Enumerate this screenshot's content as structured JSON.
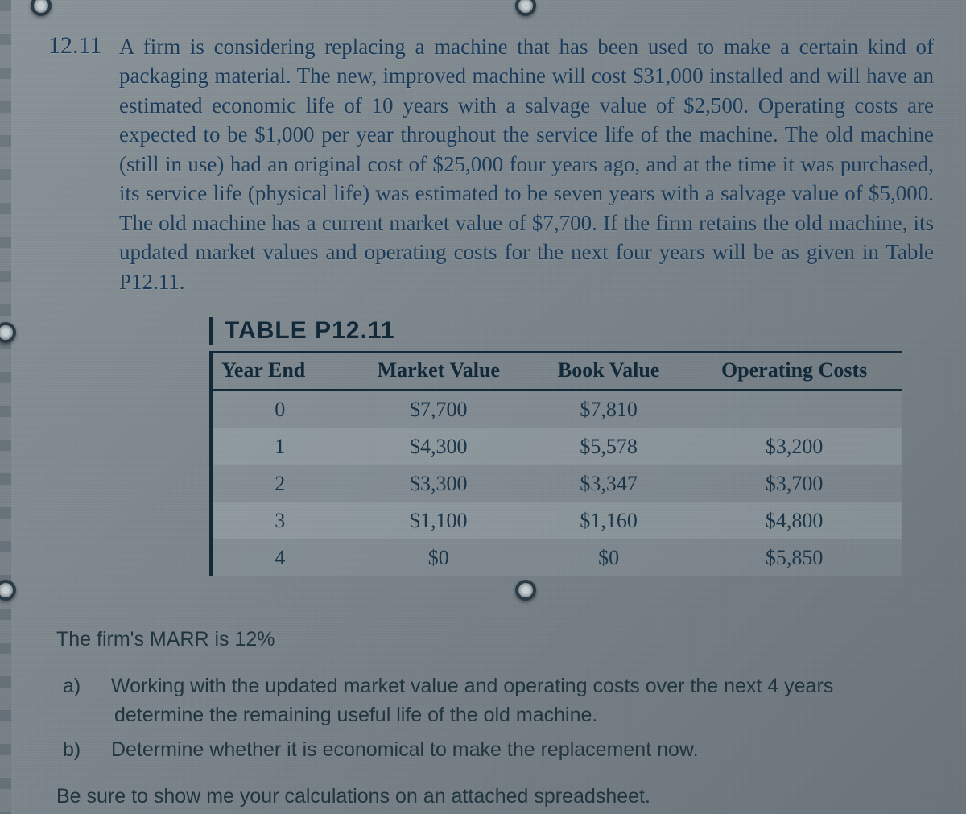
{
  "problem": {
    "number": "12.11",
    "text": "A firm is considering replacing a machine that has been used to make a certain kind of packaging material. The new, improved machine will cost $31,000 installed and will have an estimated economic life of 10 years with a salvage value of $2,500. Operating costs are expected to be $1,000 per year throughout the service life of the machine. The old machine (still in use) had an original cost of $25,000 four years ago, and at the time it was purchased, its service life (physical life) was estimated to be seven years with a salvage value of $5,000. The old machine has a current market value of $7,700. If the firm retains the old machine, its updated market values and operating costs for the next four years will be as given in Table P12.11."
  },
  "table": {
    "title": "TABLE P12.11",
    "columns": [
      "Year End",
      "Market Value",
      "Book Value",
      "Operating Costs"
    ],
    "rows": [
      [
        "0",
        "$7,700",
        "$7,810",
        ""
      ],
      [
        "1",
        "$4,300",
        "$5,578",
        "$3,200"
      ],
      [
        "2",
        "$3,300",
        "$3,347",
        "$3,700"
      ],
      [
        "3",
        "$1,100",
        "$1,160",
        "$4,800"
      ],
      [
        "4",
        "$0",
        "$0",
        "$5,850"
      ]
    ],
    "header_border_color": "#102838",
    "text_color": "#1a3448"
  },
  "lower": {
    "marr": "The firm's MARR is 12%",
    "parts": [
      {
        "letter": "a)",
        "text": "Working with the updated market value and operating costs over the next 4 years determine the remaining useful life of the old machine."
      },
      {
        "letter": "b)",
        "text": "Determine whether it is economical to make the replacement now."
      }
    ],
    "closing": "Be sure to show me your calculations on an attached spreadsheet."
  },
  "colors": {
    "page_bg_start": "#8a9499",
    "page_bg_end": "#6a747a",
    "body_text": "#1a3a5a",
    "lower_text": "#20343e"
  }
}
